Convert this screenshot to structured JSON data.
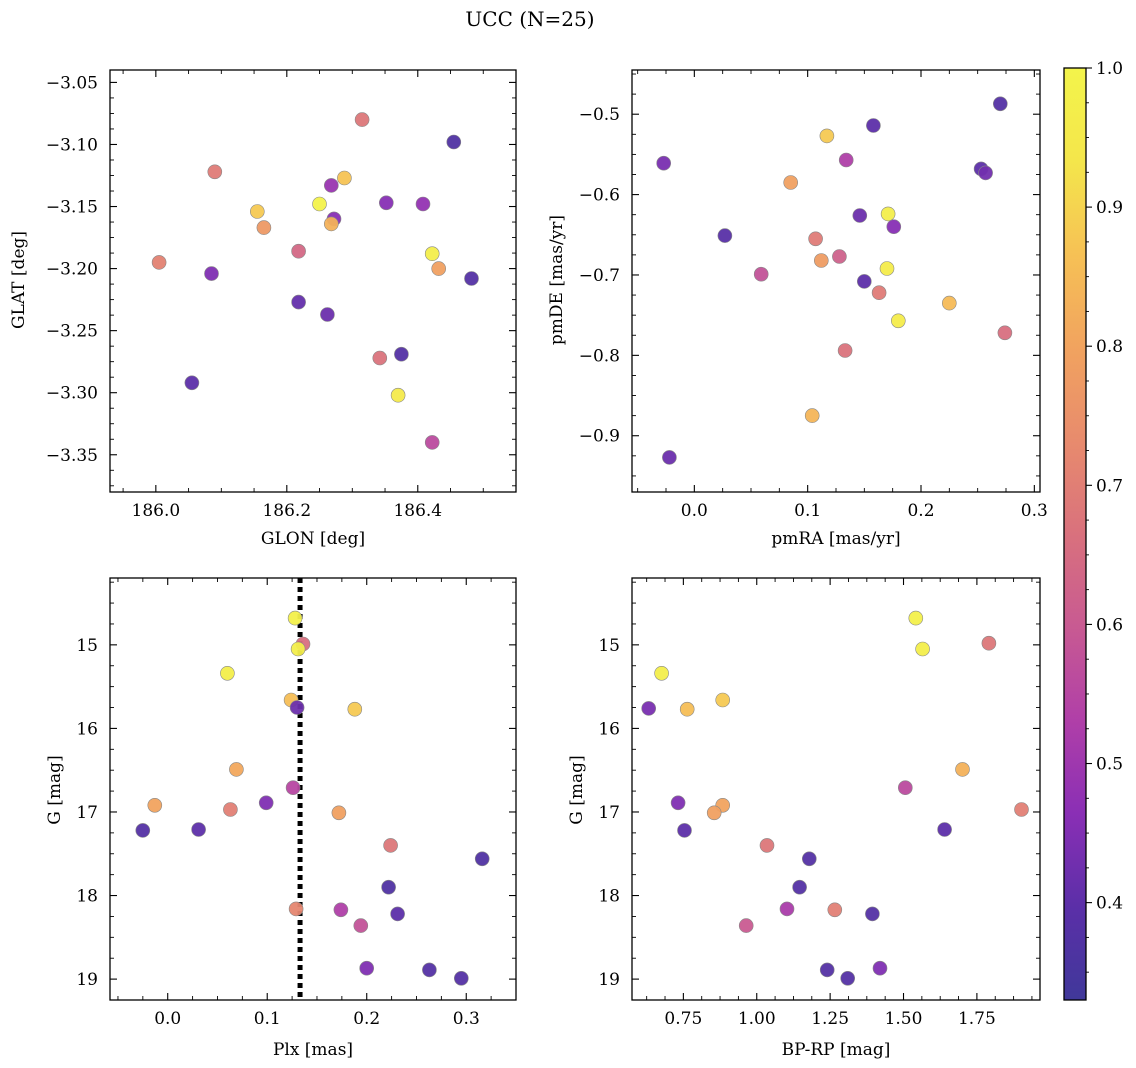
{
  "title": "UCC (N=25)",
  "colorbar": {
    "range": [
      0.33,
      1.0
    ],
    "ticks": [
      0.4,
      0.5,
      0.6,
      0.7,
      0.8,
      0.9,
      1.0
    ],
    "tick_labels": [
      "0.4",
      "0.5",
      "0.6",
      "0.7",
      "0.8",
      "0.9",
      "1.0"
    ],
    "colormap": "plasma",
    "colormap_stops": [
      "#40389a",
      "#5b2fa8",
      "#8a2fb5",
      "#b03fa8",
      "#c85a92",
      "#d9717d",
      "#e88b6d",
      "#f1a35f",
      "#f6c155",
      "#f4e64b",
      "#f3f44b"
    ]
  },
  "point_style": {
    "edge_color": "#888888"
  },
  "chart_data": [
    {
      "type": "scatter",
      "id": "lon-lat",
      "xlabel": "GLON [deg]",
      "ylabel": "GLAT [deg]",
      "xlim": [
        185.93,
        186.55
      ],
      "ylim": [
        -3.38,
        -3.04
      ],
      "y_inverted": false,
      "xticks": [
        186.0,
        186.2,
        186.4
      ],
      "xtick_labels": [
        "186.0",
        "186.2",
        "186.4"
      ],
      "yticks": [
        -3.35,
        -3.3,
        -3.25,
        -3.2,
        -3.15,
        -3.1,
        -3.05
      ],
      "ytick_labels": [
        "−3.35",
        "−3.30",
        "−3.25",
        "−3.20",
        "−3.15",
        "−3.10",
        "−3.05"
      ],
      "x": [
        186.315,
        186.455,
        186.09,
        186.268,
        186.288,
        186.352,
        186.408,
        186.155,
        186.25,
        186.272,
        186.165,
        186.268,
        186.005,
        186.218,
        186.422,
        186.085,
        186.432,
        186.482,
        186.218,
        186.262,
        186.342,
        186.375,
        186.055,
        186.37,
        186.422
      ],
      "y": [
        -3.08,
        -3.098,
        -3.122,
        -3.133,
        -3.127,
        -3.147,
        -3.148,
        -3.154,
        -3.148,
        -3.16,
        -3.167,
        -3.164,
        -3.195,
        -3.186,
        -3.188,
        -3.204,
        -3.2,
        -3.208,
        -3.227,
        -3.237,
        -3.272,
        -3.269,
        -3.292,
        -3.302,
        -3.34
      ],
      "c": [
        0.68,
        0.37,
        0.69,
        0.49,
        0.87,
        0.46,
        0.48,
        0.88,
        0.99,
        0.46,
        0.77,
        0.83,
        0.71,
        0.64,
        0.97,
        0.45,
        0.79,
        0.38,
        0.41,
        0.42,
        0.67,
        0.38,
        0.4,
        0.95,
        0.56
      ]
    },
    {
      "type": "scatter",
      "id": "pm",
      "xlabel": "pmRA [mas/yr]",
      "ylabel": "pmDE [mas/yr]",
      "xlim": [
        -0.055,
        0.305
      ],
      "ylim": [
        -0.97,
        -0.445
      ],
      "y_inverted": false,
      "xticks": [
        0.0,
        0.1,
        0.2,
        0.3
      ],
      "xtick_labels": [
        "0.0",
        "0.1",
        "0.2",
        "0.3"
      ],
      "yticks": [
        -0.9,
        -0.8,
        -0.7,
        -0.6,
        -0.5
      ],
      "ytick_labels": [
        "−0.9",
        "−0.8",
        "−0.7",
        "−0.6",
        "−0.5"
      ],
      "x": [
        0.27,
        0.158,
        0.117,
        -0.027,
        0.134,
        0.253,
        0.257,
        0.085,
        0.146,
        0.171,
        0.176,
        0.027,
        0.107,
        0.128,
        0.112,
        0.059,
        0.17,
        0.15,
        0.163,
        0.225,
        0.18,
        0.274,
        0.133,
        0.104,
        -0.022
      ],
      "y": [
        -0.487,
        -0.514,
        -0.527,
        -0.561,
        -0.557,
        -0.568,
        -0.573,
        -0.585,
        -0.626,
        -0.624,
        -0.64,
        -0.651,
        -0.655,
        -0.677,
        -0.682,
        -0.699,
        -0.692,
        -0.708,
        -0.722,
        -0.735,
        -0.757,
        -0.772,
        -0.794,
        -0.875,
        -0.927
      ],
      "c": [
        0.38,
        0.4,
        0.88,
        0.44,
        0.53,
        0.4,
        0.43,
        0.79,
        0.42,
        0.97,
        0.46,
        0.39,
        0.69,
        0.62,
        0.78,
        0.58,
        0.96,
        0.4,
        0.69,
        0.85,
        0.96,
        0.66,
        0.67,
        0.84,
        0.42
      ]
    },
    {
      "type": "scatter",
      "id": "plx-g",
      "xlabel": "Plx [mas]",
      "ylabel": "G [mag]",
      "xlim": [
        -0.058,
        0.35
      ],
      "ylim": [
        14.2,
        19.25
      ],
      "y_inverted": true,
      "vline": {
        "x": 0.133,
        "style": "dotted",
        "color": "#000000"
      },
      "xticks": [
        0.0,
        0.1,
        0.2,
        0.3
      ],
      "xtick_labels": [
        "0.0",
        "0.1",
        "0.2",
        "0.3"
      ],
      "yticks": [
        15,
        16,
        17,
        18,
        19
      ],
      "ytick_labels": [
        "15",
        "16",
        "17",
        "18",
        "19"
      ],
      "x": [
        0.128,
        0.136,
        0.131,
        0.06,
        0.124,
        0.13,
        0.188,
        0.069,
        0.126,
        -0.013,
        0.063,
        0.099,
        0.172,
        -0.025,
        0.031,
        0.224,
        0.316,
        0.222,
        0.129,
        0.174,
        0.231,
        0.194,
        0.2,
        0.263,
        0.295
      ],
      "y": [
        14.68,
        14.99,
        15.05,
        15.34,
        15.66,
        15.75,
        15.77,
        16.49,
        16.71,
        16.92,
        16.97,
        16.89,
        17.01,
        17.22,
        17.21,
        17.4,
        17.56,
        17.9,
        18.16,
        18.17,
        18.22,
        18.36,
        18.87,
        18.89,
        18.99
      ],
      "c": [
        0.98,
        0.66,
        0.97,
        0.97,
        0.86,
        0.42,
        0.88,
        0.81,
        0.55,
        0.8,
        0.7,
        0.45,
        0.79,
        0.38,
        0.4,
        0.68,
        0.37,
        0.37,
        0.72,
        0.53,
        0.4,
        0.58,
        0.45,
        0.38,
        0.38
      ]
    },
    {
      "type": "scatter",
      "id": "color-g",
      "xlabel": "BP-RP [mag]",
      "ylabel": "G [mag]",
      "xlim": [
        0.575,
        1.965
      ],
      "ylim": [
        14.2,
        19.25
      ],
      "y_inverted": true,
      "xticks": [
        0.75,
        1.0,
        1.25,
        1.5,
        1.75
      ],
      "xtick_labels": [
        "0.75",
        "1.00",
        "1.25",
        "1.50",
        "1.75"
      ],
      "yticks": [
        15,
        16,
        17,
        18,
        19
      ],
      "ytick_labels": [
        "15",
        "16",
        "17",
        "18",
        "19"
      ],
      "x": [
        1.542,
        1.791,
        1.565,
        0.676,
        0.884,
        0.632,
        0.763,
        1.701,
        1.506,
        0.732,
        0.884,
        0.855,
        1.902,
        0.754,
        1.64,
        1.035,
        1.179,
        1.146,
        1.266,
        1.103,
        1.394,
        0.964,
        1.42,
        1.24,
        1.31
      ],
      "y": [
        14.68,
        14.98,
        15.05,
        15.34,
        15.66,
        15.76,
        15.77,
        16.49,
        16.71,
        16.89,
        16.92,
        17.01,
        16.97,
        17.22,
        17.21,
        17.4,
        17.56,
        17.9,
        18.17,
        18.16,
        18.22,
        18.36,
        18.87,
        18.89,
        18.99
      ],
      "c": [
        0.98,
        0.68,
        0.97,
        0.97,
        0.88,
        0.44,
        0.86,
        0.83,
        0.56,
        0.45,
        0.8,
        0.79,
        0.7,
        0.4,
        0.4,
        0.68,
        0.38,
        0.38,
        0.7,
        0.52,
        0.38,
        0.6,
        0.45,
        0.38,
        0.38
      ]
    }
  ]
}
